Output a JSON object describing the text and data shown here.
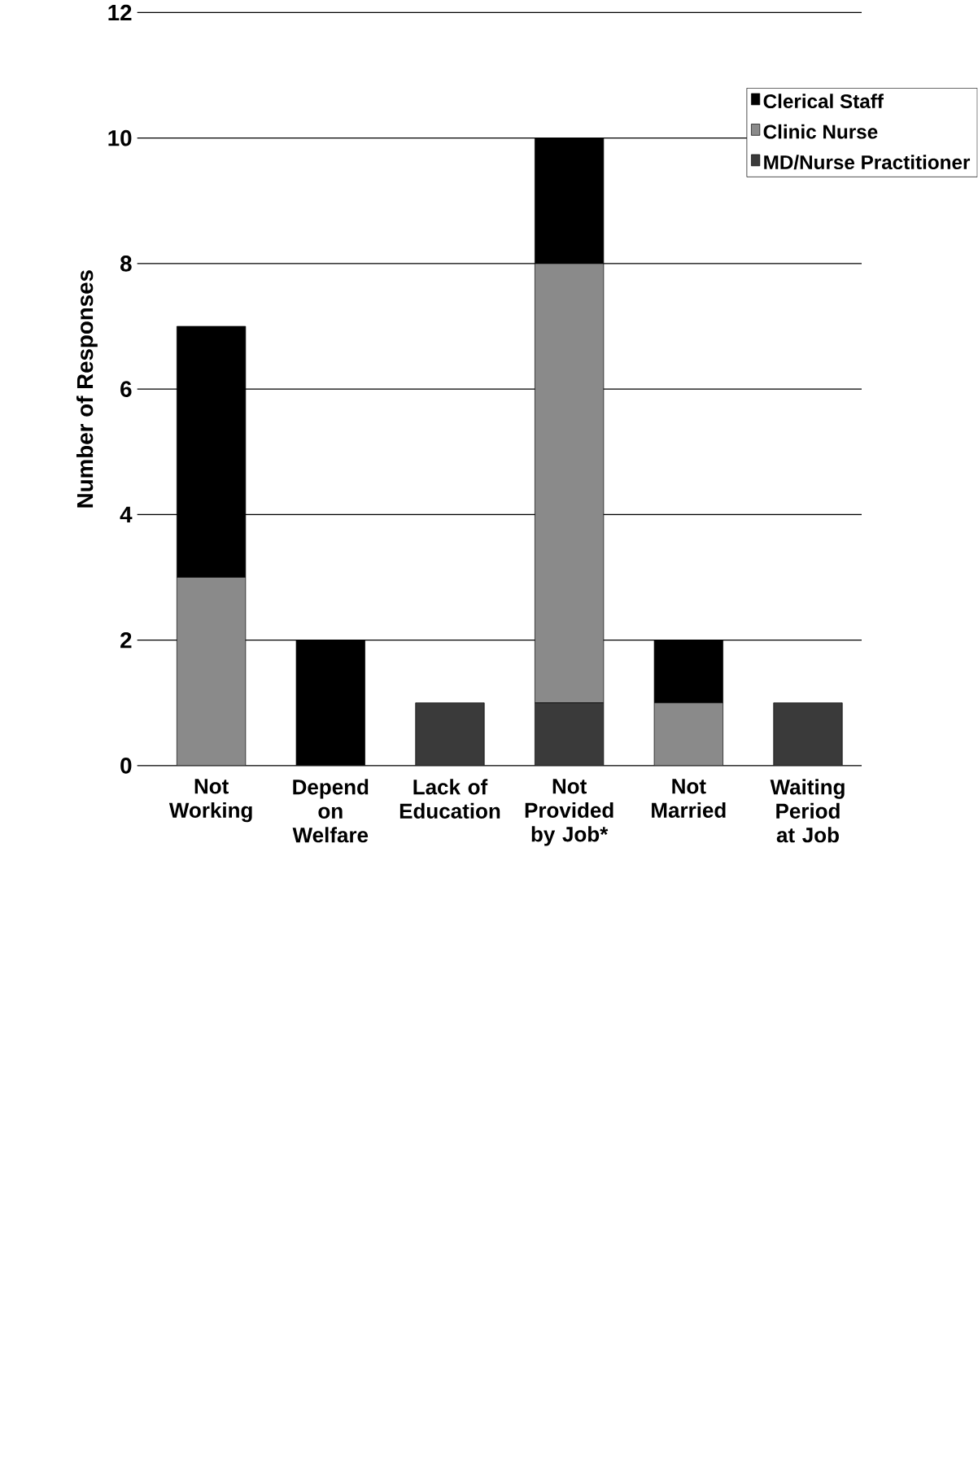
{
  "chart_data": {
    "type": "bar",
    "stacked": true,
    "ylabel": "Number of Responses",
    "categories": [
      "Not Working",
      "Depend on Welfare",
      "Lack of Education",
      "Not Provided by Job*",
      "Not Married",
      "Waiting Period at Job"
    ],
    "series": [
      {
        "name": "MD/Nurse Practitioner",
        "color": "#3a3a3a",
        "values": [
          0,
          0,
          1,
          1,
          0,
          1
        ]
      },
      {
        "name": "Clinic Nurse",
        "color": "#8a8a8a",
        "values": [
          3,
          0,
          0,
          7,
          1,
          0
        ]
      },
      {
        "name": "Clerical Staff",
        "color": "#000000",
        "values": [
          4,
          2,
          0,
          2,
          1,
          0
        ]
      }
    ],
    "ylim": [
      0,
      12
    ],
    "yticks": [
      0,
      2,
      4,
      6,
      8,
      10,
      12
    ],
    "grid": "y",
    "legend": "top right"
  }
}
